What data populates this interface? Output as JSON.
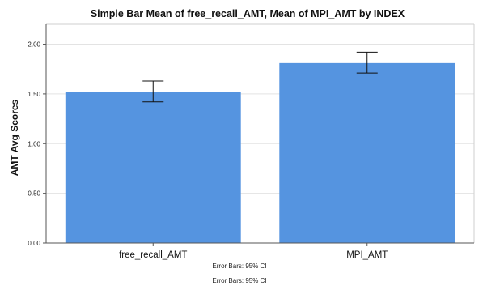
{
  "chart_data": {
    "type": "bar",
    "title": "Simple Bar Mean of free_recall_AMT, Mean of MPI_AMT by INDEX",
    "xlabel": "",
    "ylabel": "AMT Avg Scores",
    "categories": [
      "free_recall_AMT",
      "MPI_AMT"
    ],
    "values": [
      1.52,
      1.81
    ],
    "error_bars": [
      {
        "lower": 1.42,
        "upper": 1.63
      },
      {
        "lower": 1.71,
        "upper": 1.92
      }
    ],
    "ylim": [
      0,
      2.2
    ],
    "yticks": [
      "0.00",
      "0.50",
      "1.00",
      "1.50",
      "2.00"
    ],
    "ytick_values": [
      0,
      0.5,
      1.0,
      1.5,
      2.0
    ],
    "grid": true,
    "bar_color": "#5594e0",
    "footnotes": [
      "Error Bars: 95% CI",
      "Error Bars: 95% CI"
    ]
  }
}
